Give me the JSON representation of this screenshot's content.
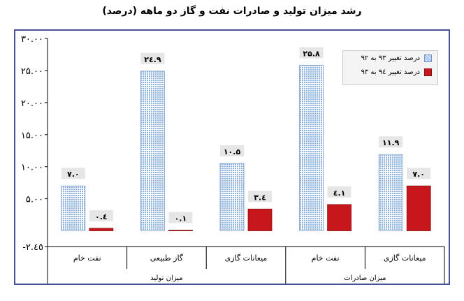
{
  "chart_data": {
    "type": "bar",
    "title": "رشد میزان تولید و صادرات نفت و گاز دو ماهه (درصد)",
    "ylim": [
      -2.45,
      30
    ],
    "yticks": [
      "-٢.٤٥",
      "۵.٠٠",
      "١٠.٠٠",
      "١۵.٠٠",
      "٢٠.٠٠",
      "٢۵.٠٠",
      "٣٠.٠٠"
    ],
    "ytick_values": [
      -2.45,
      5,
      10,
      15,
      20,
      25,
      30
    ],
    "categories": [
      "نفت خام",
      "گاز طبیعی",
      "میعانات گازی",
      "نفت خام",
      "میعانات گازی"
    ],
    "groups": [
      {
        "label": "میزان تولید",
        "span": [
          0,
          2
        ]
      },
      {
        "label": "میزان صادرات",
        "span": [
          3,
          4
        ]
      }
    ],
    "series": [
      {
        "name": "درصد تغییر ٩٣ به ٩٢",
        "values": [
          7.0,
          24.9,
          10.5,
          25.8,
          11.9
        ],
        "labels": [
          "٧.٠",
          "٢٤.٩",
          "١٠.۵",
          "٢۵.٨",
          "١١.٩"
        ],
        "color": "#9fc1e8"
      },
      {
        "name": "درصد تغییر ٩٤ به ٩٣",
        "values": [
          0.4,
          0.1,
          3.4,
          4.1,
          7.0
        ],
        "labels": [
          "٠.٤",
          "٠.١",
          "٣.٤",
          "٤.١",
          "٧.٠"
        ],
        "color": "#c8161d"
      }
    ],
    "legend_position": "top-right",
    "grid": false
  }
}
